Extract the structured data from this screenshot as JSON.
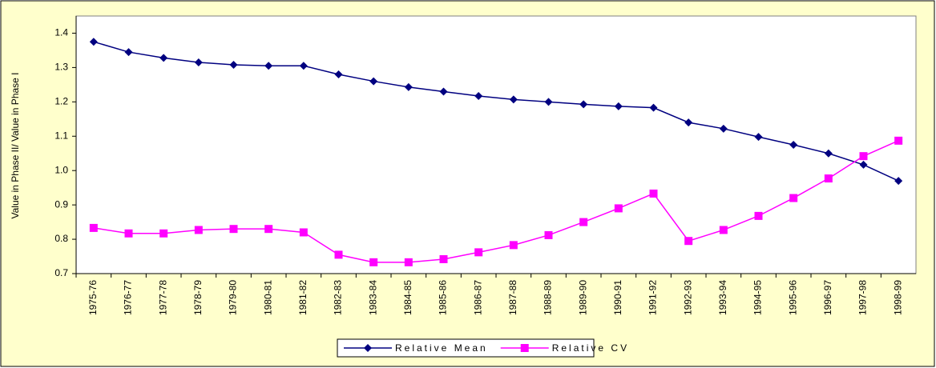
{
  "chart_data": {
    "type": "line",
    "y_label": "Value in Phase II/ Value in Phase I",
    "categories": [
      "1975-76",
      "1976-77",
      "1977-78",
      "1978-79",
      "1979-80",
      "1980-81",
      "1981-82",
      "1982-83",
      "1983-84",
      "1984-85",
      "1985-86",
      "1986-87",
      "1987-88",
      "1988-89",
      "1989-90",
      "1990-91",
      "1991-92",
      "1992-93",
      "1993-94",
      "1994-95",
      "1995-96",
      "1996-97",
      "1997-98",
      "1998-99"
    ],
    "series": [
      {
        "name": "Relative Mean",
        "color": "#000080",
        "marker": "diamond",
        "values": [
          1.375,
          1.345,
          1.328,
          1.315,
          1.308,
          1.305,
          1.305,
          1.28,
          1.26,
          1.243,
          1.23,
          1.217,
          1.207,
          1.2,
          1.193,
          1.187,
          1.183,
          1.14,
          1.122,
          1.098,
          1.075,
          1.05,
          1.017,
          0.97
        ]
      },
      {
        "name": "Relative CV",
        "color": "#ff00ff",
        "marker": "square",
        "values": [
          0.833,
          0.817,
          0.817,
          0.827,
          0.83,
          0.83,
          0.82,
          0.755,
          0.733,
          0.733,
          0.742,
          0.762,
          0.783,
          0.812,
          0.85,
          0.89,
          0.933,
          0.795,
          0.827,
          0.868,
          0.92,
          0.977,
          1.042,
          1.087
        ]
      }
    ],
    "ylim": [
      0.7,
      1.45
    ],
    "yticks": [
      0.7,
      0.8,
      0.9,
      {
        "value": 1,
        "label": "1.0"
      },
      1.1,
      1.2,
      1.3,
      1.4
    ],
    "legend": "bottom"
  }
}
